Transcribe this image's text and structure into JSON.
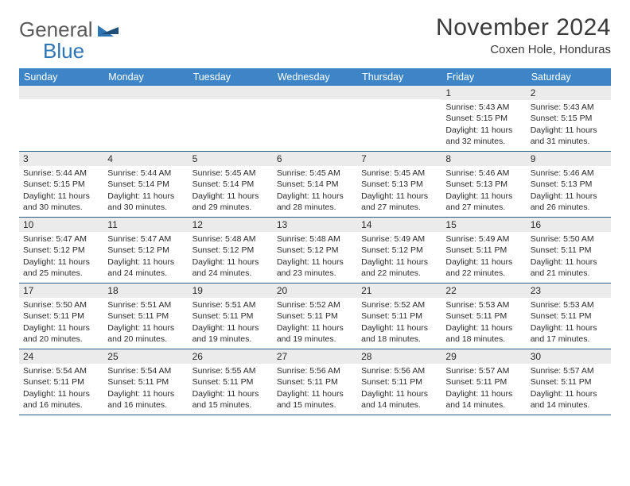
{
  "logo": {
    "word1": "General",
    "word2": "Blue"
  },
  "title": "November 2024",
  "location": "Coxen Hole, Honduras",
  "colors": {
    "header_bg": "#3d85c6",
    "header_text": "#ffffff",
    "daynum_bg": "#ebebeb",
    "rule": "#2e5c8a",
    "body_text": "#2a2a2a",
    "logo_gray": "#5a5a5a",
    "logo_blue": "#2e75b6"
  },
  "day_names": [
    "Sunday",
    "Monday",
    "Tuesday",
    "Wednesday",
    "Thursday",
    "Friday",
    "Saturday"
  ],
  "weeks": [
    [
      null,
      null,
      null,
      null,
      null,
      {
        "n": "1",
        "sunrise": "5:43 AM",
        "sunset": "5:15 PM",
        "daylight": "11 hours and 32 minutes."
      },
      {
        "n": "2",
        "sunrise": "5:43 AM",
        "sunset": "5:15 PM",
        "daylight": "11 hours and 31 minutes."
      }
    ],
    [
      {
        "n": "3",
        "sunrise": "5:44 AM",
        "sunset": "5:15 PM",
        "daylight": "11 hours and 30 minutes."
      },
      {
        "n": "4",
        "sunrise": "5:44 AM",
        "sunset": "5:14 PM",
        "daylight": "11 hours and 30 minutes."
      },
      {
        "n": "5",
        "sunrise": "5:45 AM",
        "sunset": "5:14 PM",
        "daylight": "11 hours and 29 minutes."
      },
      {
        "n": "6",
        "sunrise": "5:45 AM",
        "sunset": "5:14 PM",
        "daylight": "11 hours and 28 minutes."
      },
      {
        "n": "7",
        "sunrise": "5:45 AM",
        "sunset": "5:13 PM",
        "daylight": "11 hours and 27 minutes."
      },
      {
        "n": "8",
        "sunrise": "5:46 AM",
        "sunset": "5:13 PM",
        "daylight": "11 hours and 27 minutes."
      },
      {
        "n": "9",
        "sunrise": "5:46 AM",
        "sunset": "5:13 PM",
        "daylight": "11 hours and 26 minutes."
      }
    ],
    [
      {
        "n": "10",
        "sunrise": "5:47 AM",
        "sunset": "5:12 PM",
        "daylight": "11 hours and 25 minutes."
      },
      {
        "n": "11",
        "sunrise": "5:47 AM",
        "sunset": "5:12 PM",
        "daylight": "11 hours and 24 minutes."
      },
      {
        "n": "12",
        "sunrise": "5:48 AM",
        "sunset": "5:12 PM",
        "daylight": "11 hours and 24 minutes."
      },
      {
        "n": "13",
        "sunrise": "5:48 AM",
        "sunset": "5:12 PM",
        "daylight": "11 hours and 23 minutes."
      },
      {
        "n": "14",
        "sunrise": "5:49 AM",
        "sunset": "5:12 PM",
        "daylight": "11 hours and 22 minutes."
      },
      {
        "n": "15",
        "sunrise": "5:49 AM",
        "sunset": "5:11 PM",
        "daylight": "11 hours and 22 minutes."
      },
      {
        "n": "16",
        "sunrise": "5:50 AM",
        "sunset": "5:11 PM",
        "daylight": "11 hours and 21 minutes."
      }
    ],
    [
      {
        "n": "17",
        "sunrise": "5:50 AM",
        "sunset": "5:11 PM",
        "daylight": "11 hours and 20 minutes."
      },
      {
        "n": "18",
        "sunrise": "5:51 AM",
        "sunset": "5:11 PM",
        "daylight": "11 hours and 20 minutes."
      },
      {
        "n": "19",
        "sunrise": "5:51 AM",
        "sunset": "5:11 PM",
        "daylight": "11 hours and 19 minutes."
      },
      {
        "n": "20",
        "sunrise": "5:52 AM",
        "sunset": "5:11 PM",
        "daylight": "11 hours and 19 minutes."
      },
      {
        "n": "21",
        "sunrise": "5:52 AM",
        "sunset": "5:11 PM",
        "daylight": "11 hours and 18 minutes."
      },
      {
        "n": "22",
        "sunrise": "5:53 AM",
        "sunset": "5:11 PM",
        "daylight": "11 hours and 18 minutes."
      },
      {
        "n": "23",
        "sunrise": "5:53 AM",
        "sunset": "5:11 PM",
        "daylight": "11 hours and 17 minutes."
      }
    ],
    [
      {
        "n": "24",
        "sunrise": "5:54 AM",
        "sunset": "5:11 PM",
        "daylight": "11 hours and 16 minutes."
      },
      {
        "n": "25",
        "sunrise": "5:54 AM",
        "sunset": "5:11 PM",
        "daylight": "11 hours and 16 minutes."
      },
      {
        "n": "26",
        "sunrise": "5:55 AM",
        "sunset": "5:11 PM",
        "daylight": "11 hours and 15 minutes."
      },
      {
        "n": "27",
        "sunrise": "5:56 AM",
        "sunset": "5:11 PM",
        "daylight": "11 hours and 15 minutes."
      },
      {
        "n": "28",
        "sunrise": "5:56 AM",
        "sunset": "5:11 PM",
        "daylight": "11 hours and 14 minutes."
      },
      {
        "n": "29",
        "sunrise": "5:57 AM",
        "sunset": "5:11 PM",
        "daylight": "11 hours and 14 minutes."
      },
      {
        "n": "30",
        "sunrise": "5:57 AM",
        "sunset": "5:11 PM",
        "daylight": "11 hours and 14 minutes."
      }
    ]
  ],
  "labels": {
    "sunrise": "Sunrise:",
    "sunset": "Sunset:",
    "daylight": "Daylight:"
  }
}
